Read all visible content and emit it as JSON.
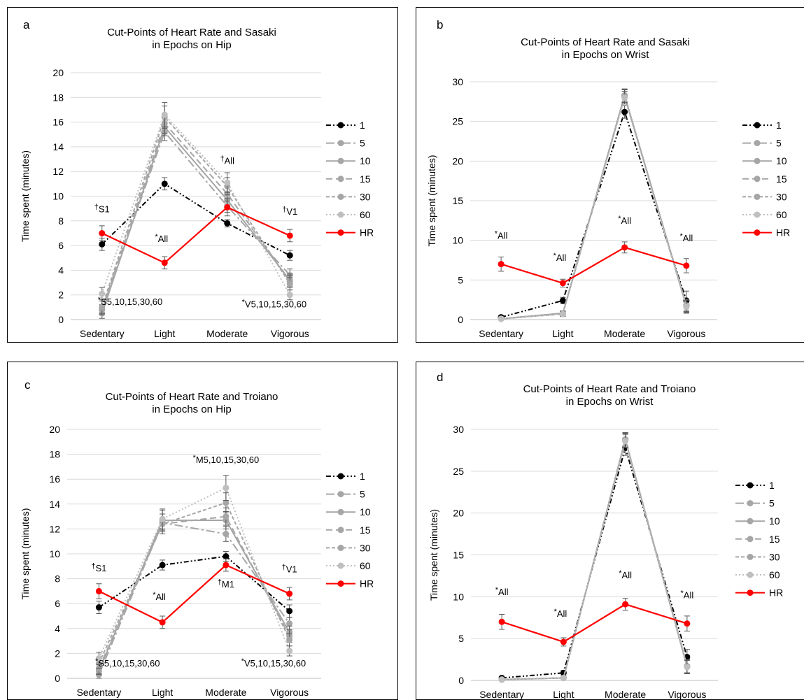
{
  "chart_data": [
    {
      "panel": "a",
      "type": "line",
      "title": "Cut-Points of Heart Rate and Sasaki",
      "subtitle": "in Epochs on Hip",
      "xlabel": "",
      "ylabel": "Time spent (minutes)",
      "categories": [
        "Sedentary",
        "Light",
        "Moderate",
        "Vigorous"
      ],
      "ylim": [
        0,
        20
      ],
      "ytick_step": 2,
      "grid": true,
      "legend_position": "right",
      "series": [
        {
          "name": "1",
          "values": [
            6.1,
            11.0,
            7.8,
            5.2
          ],
          "errors": [
            0.5,
            0.5,
            0.3,
            0.4
          ],
          "color": "#000000",
          "dash": "dashdotdot"
        },
        {
          "name": "5",
          "values": [
            0.8,
            15.2,
            9.2,
            3.6
          ],
          "errors": [
            0.4,
            0.7,
            0.5,
            0.5
          ],
          "color": "#a6a6a6",
          "dash": "longdashdot"
        },
        {
          "name": "10",
          "values": [
            0.5,
            15.6,
            9.7,
            3.2
          ],
          "errors": [
            0.4,
            0.7,
            0.6,
            0.5
          ],
          "color": "#a6a6a6",
          "dash": "solid"
        },
        {
          "name": "15",
          "values": [
            0.8,
            15.9,
            10.2,
            3.1
          ],
          "errors": [
            0.4,
            0.8,
            0.6,
            0.5
          ],
          "color": "#a6a6a6",
          "dash": "dash"
        },
        {
          "name": "30",
          "values": [
            1.0,
            16.4,
            10.8,
            2.9
          ],
          "errors": [
            0.5,
            0.9,
            0.7,
            0.5
          ],
          "color": "#a6a6a6",
          "dash": "shortdash"
        },
        {
          "name": "60",
          "values": [
            2.1,
            16.6,
            11.1,
            2.0
          ],
          "errors": [
            0.5,
            1.0,
            0.8,
            0.4
          ],
          "color": "#bfbfbf",
          "dash": "dot"
        },
        {
          "name": "HR",
          "values": [
            7.0,
            4.6,
            9.1,
            6.8
          ],
          "errors": [
            0.6,
            0.5,
            0.7,
            0.5
          ],
          "color": "#ff0000",
          "dash": "solid"
        }
      ],
      "annotations": [
        {
          "text": "†S1",
          "x": 0,
          "y": 8.7
        },
        {
          "text": "*S5,10,15,30,60",
          "x": 0.45,
          "y": 1.2
        },
        {
          "text": "*All",
          "x": 0.95,
          "y": 6.3
        },
        {
          "text": "†All",
          "x": 2.0,
          "y": 12.6
        },
        {
          "text": "†V1",
          "x": 3.0,
          "y": 8.5
        },
        {
          "text": "*V5,10,15,30,60",
          "x": 2.75,
          "y": 1.0
        }
      ]
    },
    {
      "panel": "b",
      "type": "line",
      "title": "Cut-Points of Heart Rate and Sasaki",
      "subtitle": "in Epochs on Wrist",
      "xlabel": "",
      "ylabel": "Time spent (minutes)",
      "categories": [
        "Sedentary",
        "Light",
        "Moderate",
        "Vigorous"
      ],
      "ylim": [
        0,
        30
      ],
      "ytick_step": 5,
      "grid": true,
      "legend_position": "right",
      "series": [
        {
          "name": "1",
          "values": [
            0.3,
            2.4,
            26.2,
            2.4
          ],
          "errors": [
            0.2,
            0.4,
            0.8,
            1.2
          ],
          "color": "#000000",
          "dash": "dashdotdot"
        },
        {
          "name": "5",
          "values": [
            0.1,
            0.8,
            28.2,
            1.8
          ],
          "errors": [
            0.1,
            0.3,
            0.8,
            0.8
          ],
          "color": "#a6a6a6",
          "dash": "longdashdot"
        },
        {
          "name": "10",
          "values": [
            0.1,
            0.8,
            28.3,
            1.8
          ],
          "errors": [
            0.1,
            0.3,
            0.8,
            0.8
          ],
          "color": "#a6a6a6",
          "dash": "solid"
        },
        {
          "name": "15",
          "values": [
            0.1,
            0.8,
            28.3,
            1.7
          ],
          "errors": [
            0.1,
            0.3,
            0.8,
            0.8
          ],
          "color": "#a6a6a6",
          "dash": "dash"
        },
        {
          "name": "30",
          "values": [
            0.1,
            0.7,
            28.2,
            1.7
          ],
          "errors": [
            0.1,
            0.3,
            0.8,
            0.8
          ],
          "color": "#a6a6a6",
          "dash": "shortdash"
        },
        {
          "name": "60",
          "values": [
            0.1,
            0.7,
            28.0,
            1.6
          ],
          "errors": [
            0.1,
            0.3,
            0.8,
            0.8
          ],
          "color": "#bfbfbf",
          "dash": "dot"
        },
        {
          "name": "HR",
          "values": [
            7.0,
            4.6,
            9.1,
            6.8
          ],
          "errors": [
            0.9,
            0.5,
            0.7,
            0.9
          ],
          "color": "#ff0000",
          "dash": "solid"
        }
      ],
      "annotations": [
        {
          "text": "*All",
          "x": 0.0,
          "y": 10.2
        },
        {
          "text": "*All",
          "x": 0.95,
          "y": 7.4
        },
        {
          "text": "*All",
          "x": 2.0,
          "y": 12.1
        },
        {
          "text": "*All",
          "x": 3.0,
          "y": 9.9
        }
      ]
    },
    {
      "panel": "c",
      "type": "line",
      "title": "Cut-Points of Heart Rate and Troiano",
      "subtitle": "in Epochs on Hip",
      "xlabel": "",
      "ylabel": "Time spent (minutes)",
      "categories": [
        "Sedentary",
        "Light",
        "Moderate",
        "Vigorous"
      ],
      "ylim": [
        0,
        20
      ],
      "ytick_step": 2,
      "grid": true,
      "legend_position": "right",
      "series": [
        {
          "name": "1",
          "values": [
            5.7,
            9.1,
            9.8,
            5.4
          ],
          "errors": [
            0.5,
            0.4,
            0.4,
            0.5
          ],
          "color": "#000000",
          "dash": "dashdotdot"
        },
        {
          "name": "5",
          "values": [
            0.3,
            12.5,
            11.6,
            4.4
          ],
          "errors": [
            0.3,
            0.7,
            0.6,
            0.5
          ],
          "color": "#a6a6a6",
          "dash": "longdashdot"
        },
        {
          "name": "10",
          "values": [
            0.6,
            12.7,
            12.7,
            3.7
          ],
          "errors": [
            0.3,
            0.8,
            0.7,
            0.5
          ],
          "color": "#a6a6a6",
          "dash": "solid"
        },
        {
          "name": "15",
          "values": [
            0.8,
            12.4,
            13.0,
            3.4
          ],
          "errors": [
            0.4,
            0.8,
            0.7,
            0.5
          ],
          "color": "#a6a6a6",
          "dash": "dash"
        },
        {
          "name": "30",
          "values": [
            1.2,
            12.4,
            14.1,
            3.1
          ],
          "errors": [
            0.4,
            0.8,
            0.8,
            0.5
          ],
          "color": "#a6a6a6",
          "dash": "shortdash"
        },
        {
          "name": "60",
          "values": [
            1.6,
            12.8,
            15.3,
            2.2
          ],
          "errors": [
            0.5,
            0.8,
            1.0,
            0.4
          ],
          "color": "#bfbfbf",
          "dash": "dot"
        },
        {
          "name": "HR",
          "values": [
            7.0,
            4.5,
            9.1,
            6.8
          ],
          "errors": [
            0.6,
            0.5,
            0.5,
            0.5
          ],
          "color": "#ff0000",
          "dash": "solid"
        }
      ],
      "annotations": [
        {
          "text": "†S1",
          "x": 0.0,
          "y": 8.6
        },
        {
          "text": "*S5,10,15,30,60",
          "x": 0.45,
          "y": 0.95
        },
        {
          "text": "*All",
          "x": 0.95,
          "y": 6.3
        },
        {
          "text": "*M5,10,15,30,60",
          "x": 2.0,
          "y": 17.3
        },
        {
          "text": "†M1",
          "x": 2.0,
          "y": 7.3
        },
        {
          "text": "†V1",
          "x": 3.0,
          "y": 8.5
        },
        {
          "text": "*V5,10,15,30,60",
          "x": 2.75,
          "y": 0.95
        }
      ]
    },
    {
      "panel": "d",
      "type": "line",
      "title": "Cut-Points of Heart Rate and Troiano",
      "subtitle": "in Epochs on Wrist",
      "xlabel": "",
      "ylabel": "Time spent (minutes)",
      "categories": [
        "Sedentary",
        "Light",
        "Moderate",
        "Vigorous"
      ],
      "ylim": [
        0,
        30
      ],
      "ytick_step": 5,
      "grid": true,
      "legend_position": "right",
      "series": [
        {
          "name": "1",
          "values": [
            0.3,
            0.9,
            27.8,
            2.8
          ],
          "errors": [
            0.2,
            0.3,
            0.9,
            0.9
          ],
          "color": "#000000",
          "dash": "dashdotdot"
        },
        {
          "name": "5",
          "values": [
            0.1,
            0.3,
            28.8,
            1.7
          ],
          "errors": [
            0.1,
            0.1,
            0.8,
            0.8
          ],
          "color": "#a6a6a6",
          "dash": "longdashdot"
        },
        {
          "name": "10",
          "values": [
            0.1,
            0.3,
            28.8,
            1.7
          ],
          "errors": [
            0.1,
            0.1,
            0.8,
            0.8
          ],
          "color": "#a6a6a6",
          "dash": "solid"
        },
        {
          "name": "15",
          "values": [
            0.1,
            0.3,
            28.8,
            1.7
          ],
          "errors": [
            0.1,
            0.1,
            0.8,
            0.8
          ],
          "color": "#a6a6a6",
          "dash": "dash"
        },
        {
          "name": "30",
          "values": [
            0.1,
            0.3,
            28.7,
            1.6
          ],
          "errors": [
            0.1,
            0.1,
            0.8,
            0.8
          ],
          "color": "#a6a6a6",
          "dash": "shortdash"
        },
        {
          "name": "60",
          "values": [
            0.1,
            0.3,
            28.6,
            1.6
          ],
          "errors": [
            0.1,
            0.1,
            0.8,
            0.8
          ],
          "color": "#bfbfbf",
          "dash": "dot"
        },
        {
          "name": "HR",
          "values": [
            7.0,
            4.6,
            9.1,
            6.8
          ],
          "errors": [
            0.9,
            0.5,
            0.7,
            0.9
          ],
          "color": "#ff0000",
          "dash": "solid"
        }
      ],
      "annotations": [
        {
          "text": "*All",
          "x": 0.0,
          "y": 10.2
        },
        {
          "text": "*All",
          "x": 0.95,
          "y": 7.6
        },
        {
          "text": "*All",
          "x": 2.0,
          "y": 12.2
        },
        {
          "text": "*All",
          "x": 3.0,
          "y": 9.8
        }
      ]
    }
  ]
}
